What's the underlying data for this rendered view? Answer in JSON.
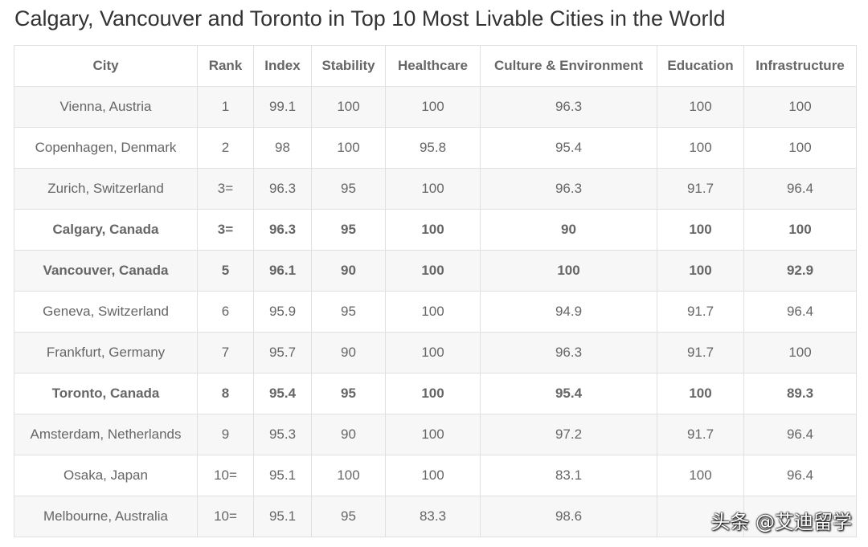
{
  "title": "Calgary, Vancouver and Toronto in Top 10 Most Livable Cities in the World",
  "table": {
    "headers": [
      "City",
      "Rank",
      "Index",
      "Stability",
      "Healthcare",
      "Culture & Environment",
      "Education",
      "Infrastructure"
    ],
    "rows": [
      {
        "highlight": false,
        "cells": [
          "Vienna, Austria",
          "1",
          "99.1",
          "100",
          "100",
          "96.3",
          "100",
          "100"
        ]
      },
      {
        "highlight": false,
        "cells": [
          "Copenhagen, Denmark",
          "2",
          "98",
          "100",
          "95.8",
          "95.4",
          "100",
          "100"
        ]
      },
      {
        "highlight": false,
        "cells": [
          "Zurich, Switzerland",
          "3=",
          "96.3",
          "95",
          "100",
          "96.3",
          "91.7",
          "96.4"
        ]
      },
      {
        "highlight": true,
        "cells": [
          "Calgary, Canada",
          "3=",
          "96.3",
          "95",
          "100",
          "90",
          "100",
          "100"
        ]
      },
      {
        "highlight": true,
        "cells": [
          "Vancouver, Canada",
          "5",
          "96.1",
          "90",
          "100",
          "100",
          "100",
          "92.9"
        ]
      },
      {
        "highlight": false,
        "cells": [
          "Geneva, Switzerland",
          "6",
          "95.9",
          "95",
          "100",
          "94.9",
          "91.7",
          "96.4"
        ]
      },
      {
        "highlight": false,
        "cells": [
          "Frankfurt, Germany",
          "7",
          "95.7",
          "90",
          "100",
          "96.3",
          "91.7",
          "100"
        ]
      },
      {
        "highlight": true,
        "cells": [
          "Toronto, Canada",
          "8",
          "95.4",
          "95",
          "100",
          "95.4",
          "100",
          "89.3"
        ]
      },
      {
        "highlight": false,
        "cells": [
          "Amsterdam, Netherlands",
          "9",
          "95.3",
          "90",
          "100",
          "97.2",
          "91.7",
          "96.4"
        ]
      },
      {
        "highlight": false,
        "cells": [
          "Osaka, Japan",
          "10=",
          "95.1",
          "100",
          "100",
          "83.1",
          "100",
          "96.4"
        ]
      },
      {
        "highlight": false,
        "cells": [
          "Melbourne, Australia",
          "10=",
          "95.1",
          "95",
          "83.3",
          "98.6",
          "",
          ""
        ]
      }
    ]
  },
  "watermark": "头条 @艾迪留学"
}
